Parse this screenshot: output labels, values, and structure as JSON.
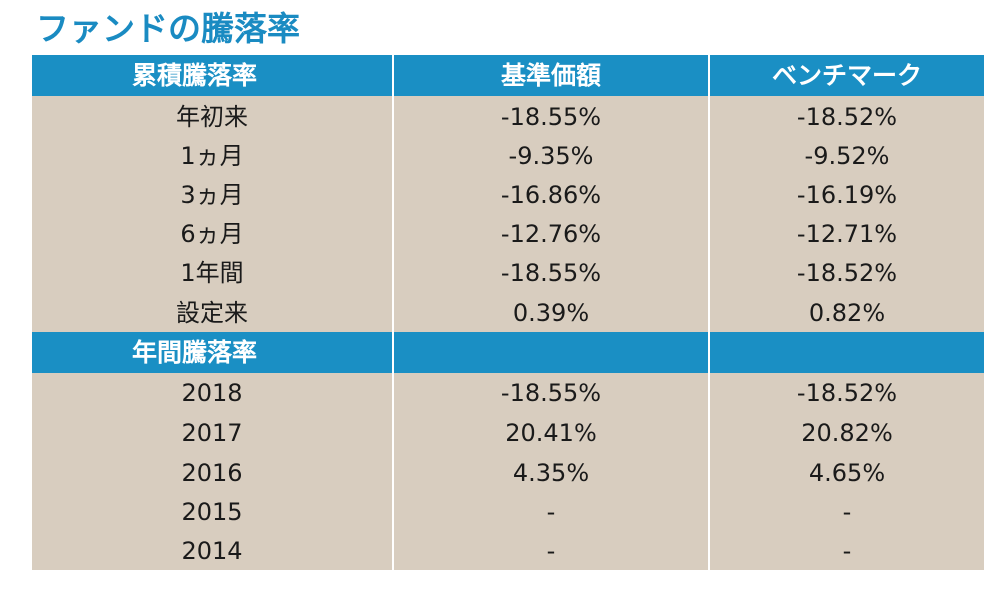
{
  "title": "ファンドの騰落率",
  "colors": {
    "title": "#1a8bc2",
    "header_bg": "#1a8fc4",
    "body_bg": "#d8cdbf",
    "divider": "#ffffff"
  },
  "header_cumulative": {
    "col0": "累積騰落率",
    "col1": "基準価額",
    "col2": "ベンチマーク"
  },
  "cumulative_rows": [
    {
      "label": "年初来",
      "nav": "-18.55%",
      "benchmark": "-18.52%"
    },
    {
      "label": "1ヵ月",
      "nav": "-9.35%",
      "benchmark": "-9.52%"
    },
    {
      "label": "3ヵ月",
      "nav": "-16.86%",
      "benchmark": "-16.19%"
    },
    {
      "label": "6ヵ月",
      "nav": "-12.76%",
      "benchmark": "-12.71%"
    },
    {
      "label": "1年間",
      "nav": "-18.55%",
      "benchmark": "-18.52%"
    },
    {
      "label": "設定来",
      "nav": "0.39%",
      "benchmark": "0.82%"
    }
  ],
  "header_annual": {
    "col0": "年間騰落率",
    "col1": "",
    "col2": ""
  },
  "annual_rows": [
    {
      "label": "2018",
      "nav": "-18.55%",
      "benchmark": "-18.52%"
    },
    {
      "label": "2017",
      "nav": "20.41%",
      "benchmark": "20.82%"
    },
    {
      "label": "2016",
      "nav": "4.35%",
      "benchmark": "4.65%"
    },
    {
      "label": "2015",
      "nav": "-",
      "benchmark": "-"
    },
    {
      "label": "2014",
      "nav": "-",
      "benchmark": "-"
    }
  ]
}
